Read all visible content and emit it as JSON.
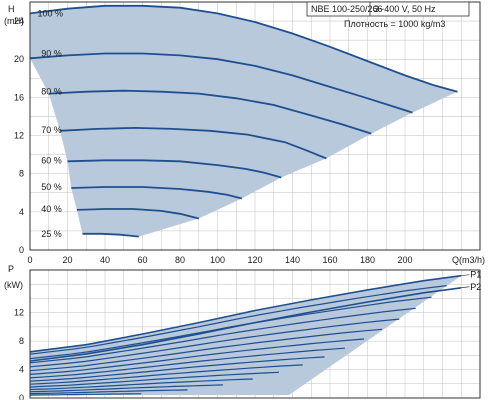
{
  "colors": {
    "curve": "#1f4f8f",
    "fill": "#b8c9dc",
    "grid": "#c0c0c0",
    "frame": "#333333"
  },
  "info": {
    "model": "NBE 100-250/266",
    "supply": "3~400 V, 50 Hz",
    "density": "Плотность = 1000 kg/m3"
  },
  "chart_data": [
    {
      "type": "line",
      "ylabel_top": "H",
      "ylabel_unit": "(mH)",
      "xlabel": "Q(m3/h)",
      "xlim": [
        0,
        240
      ],
      "ylim": [
        0,
        26
      ],
      "xticks": [
        0,
        20,
        40,
        60,
        80,
        100,
        120,
        140,
        160,
        180,
        200
      ],
      "yticks": [
        0,
        4,
        8,
        12,
        16,
        20,
        24
      ],
      "grid": true,
      "series": [
        {
          "name": "100 %",
          "label_at": [
            4,
            24.8
          ],
          "x": [
            0,
            20,
            40,
            60,
            80,
            100,
            120,
            140,
            160,
            180,
            200,
            215,
            228
          ],
          "y": [
            24.8,
            25.3,
            25.6,
            25.6,
            25.4,
            24.8,
            23.9,
            22.7,
            21.3,
            19.8,
            18.3,
            17.3,
            16.6
          ]
        },
        {
          "name": "90 %",
          "label_at": [
            6,
            20.6
          ],
          "x": [
            0,
            20,
            40,
            60,
            80,
            100,
            120,
            140,
            160,
            180,
            204
          ],
          "y": [
            20.1,
            20.4,
            20.6,
            20.6,
            20.4,
            20.0,
            19.3,
            18.3,
            17.1,
            15.9,
            14.4
          ]
        },
        {
          "name": "80 %",
          "label_at": [
            6,
            16.6
          ],
          "x": [
            10,
            30,
            50,
            70,
            90,
            110,
            130,
            150,
            166,
            182
          ],
          "y": [
            16.4,
            16.6,
            16.7,
            16.6,
            16.4,
            15.9,
            15.2,
            14.1,
            13.2,
            12.2
          ]
        },
        {
          "name": "70 %",
          "label_at": [
            6,
            12.6
          ],
          "x": [
            16,
            36,
            56,
            76,
            96,
            116,
            136,
            148,
            158
          ],
          "y": [
            12.5,
            12.7,
            12.8,
            12.7,
            12.5,
            12.1,
            11.3,
            10.4,
            9.6
          ]
        },
        {
          "name": "60 %",
          "label_at": [
            6,
            9.4
          ],
          "x": [
            20,
            40,
            60,
            80,
            100,
            115,
            125,
            134
          ],
          "y": [
            9.3,
            9.4,
            9.4,
            9.3,
            8.9,
            8.5,
            8.1,
            7.6
          ]
        },
        {
          "name": "50 %",
          "label_at": [
            6,
            6.6
          ],
          "x": [
            22,
            40,
            60,
            80,
            95,
            105,
            113
          ],
          "y": [
            6.5,
            6.6,
            6.6,
            6.4,
            6.1,
            5.8,
            5.4
          ]
        },
        {
          "name": "40 %",
          "label_at": [
            6,
            4.3
          ],
          "x": [
            25,
            40,
            55,
            70,
            80,
            90
          ],
          "y": [
            4.2,
            4.3,
            4.3,
            4.1,
            3.8,
            3.3
          ]
        },
        {
          "name": "25 %",
          "label_at": [
            6,
            1.7
          ],
          "x": [
            28,
            38,
            48,
            58
          ],
          "y": [
            1.7,
            1.7,
            1.6,
            1.4
          ]
        }
      ]
    },
    {
      "type": "area",
      "ylabel_top": "P",
      "ylabel_unit": "(kW)",
      "xlim": [
        0,
        240
      ],
      "ylim": [
        0,
        18
      ],
      "yticks": [
        0,
        4,
        8,
        12
      ],
      "grid": true,
      "series": [
        {
          "name": "P1",
          "x": [
            0,
            30,
            60,
            90,
            120,
            150,
            180,
            210,
            230
          ],
          "y": [
            6.5,
            7.5,
            9.0,
            10.6,
            12.3,
            13.8,
            15.2,
            16.5,
            17.2
          ]
        },
        {
          "name": "P2",
          "x": [
            0,
            30,
            60,
            90,
            120,
            150,
            180,
            210,
            230
          ],
          "y": [
            5.2,
            6.2,
            7.5,
            9.0,
            10.6,
            12.1,
            13.5,
            14.8,
            15.5
          ]
        }
      ]
    }
  ]
}
